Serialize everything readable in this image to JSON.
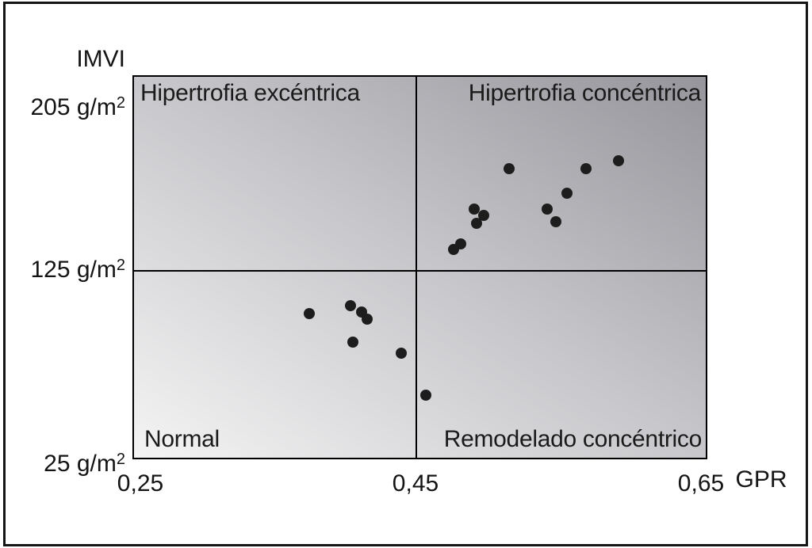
{
  "chart_data": {
    "type": "scatter",
    "title": "",
    "x_axis_label": "GPR",
    "y_axis_label": "IMVI",
    "x_tick_labels": [
      "0,25",
      "0,45",
      "0,65"
    ],
    "x_tick_values": [
      0.25,
      0.45,
      0.65
    ],
    "y_tick_labels": [
      {
        "text": "205 g/m",
        "sup": "2"
      },
      {
        "text": "125 g/m",
        "sup": "2"
      },
      {
        "text": "25 g/m",
        "sup": "2"
      }
    ],
    "y_tick_values": [
      205,
      125,
      25
    ],
    "xlim": [
      0.25,
      0.65
    ],
    "ylim": [
      25,
      220
    ],
    "grid": false,
    "legend": false,
    "quadrant_dividers": {
      "x": 0.45,
      "y": 125
    },
    "quadrant_labels": {
      "top_left": "Hipertrofia excéntrica",
      "top_right": "Hipertrofia concéntrica",
      "bottom_left": "Normal",
      "bottom_right": "Remodelado concéntrico"
    },
    "points": [
      {
        "x": 0.514,
        "y": 175
      },
      {
        "x": 0.567,
        "y": 175
      },
      {
        "x": 0.589,
        "y": 179
      },
      {
        "x": 0.554,
        "y": 163
      },
      {
        "x": 0.49,
        "y": 155
      },
      {
        "x": 0.497,
        "y": 152
      },
      {
        "x": 0.492,
        "y": 148
      },
      {
        "x": 0.54,
        "y": 155
      },
      {
        "x": 0.546,
        "y": 149
      },
      {
        "x": 0.481,
        "y": 138
      },
      {
        "x": 0.476,
        "y": 135
      },
      {
        "x": 0.375,
        "y": 102
      },
      {
        "x": 0.404,
        "y": 106
      },
      {
        "x": 0.412,
        "y": 103
      },
      {
        "x": 0.416,
        "y": 99
      },
      {
        "x": 0.406,
        "y": 87
      },
      {
        "x": 0.44,
        "y": 81
      },
      {
        "x": 0.457,
        "y": 59
      }
    ],
    "colors": {
      "point": "#1d1d1d",
      "lines": "#000000",
      "plot_gradient_light": "#f4f4f4",
      "plot_gradient_dark": "#95959b",
      "background": "#ffffff"
    }
  }
}
